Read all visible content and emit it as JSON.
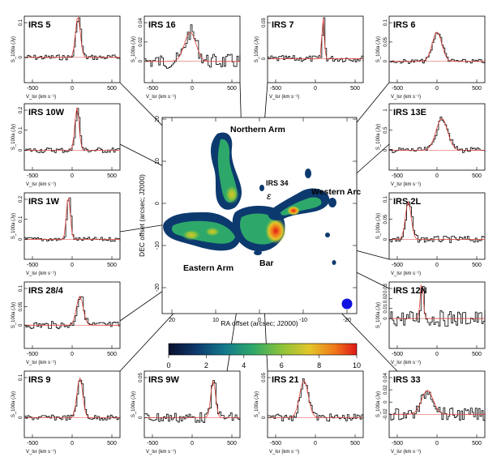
{
  "figure": {
    "map": {
      "xlabel": "RA offset (arcsec; J2000)",
      "ylabel": "DEC offset (arcsec; J2000)",
      "x_ticks": [
        "20",
        "10",
        "0",
        "-10",
        "-20"
      ],
      "y_ticks": [
        "20",
        "10",
        "0",
        "-10",
        "-20"
      ],
      "region_labels": {
        "northern_arm": "Northern Arm",
        "western_arc": "Western Arc",
        "eastern_arm": "Eastern Arm",
        "bar": "Bar",
        "irs34": "IRS 34",
        "epsilon": "ε"
      },
      "beam_color": "#1010e0"
    },
    "colorbar": {
      "ticks": [
        "0",
        "2",
        "4",
        "6",
        "8",
        "10"
      ],
      "colors": [
        "#0a0f2e",
        "#0c3a6e",
        "#137a8c",
        "#2ea86a",
        "#8cc33a",
        "#e3c62a",
        "#f07a1a",
        "#e01818"
      ]
    },
    "spectra": [
      {
        "label": "IRS 5",
        "ylabel": "S_100a (Jy)",
        "yticks": [
          "0",
          "0.1"
        ],
        "xticks": [
          "-500",
          "0",
          "500"
        ],
        "xlabel": "V_lsr (km s⁻¹)"
      },
      {
        "label": "IRS 16",
        "ylabel": "S_100a (Jy)",
        "yticks": [
          "0",
          "0.02",
          "0.04"
        ],
        "xticks": [
          "-500",
          "0",
          "500"
        ],
        "xlabel": "V_lsr (km s⁻¹)"
      },
      {
        "label": "IRS 7",
        "ylabel": "S_100a (Jy)",
        "yticks": [
          "0",
          "0.05"
        ],
        "xticks": [
          "-500",
          "0",
          "500"
        ],
        "xlabel": "V_lsr (km s⁻¹)"
      },
      {
        "label": "IRS 6",
        "ylabel": "S_100a (Jy)",
        "yticks": [
          "0",
          "0.05",
          "0.1"
        ],
        "xticks": [
          "-500",
          "0",
          "500"
        ],
        "xlabel": "V_lsr (km s⁻¹)"
      },
      {
        "label": "IRS 10W",
        "ylabel": "S_100a (Jy)",
        "yticks": [
          "0",
          "0.1",
          "0.2"
        ],
        "xticks": [
          "-500",
          "0",
          "500"
        ],
        "xlabel": "V_lsr (km s⁻¹)"
      },
      {
        "label": "IRS 13E",
        "ylabel": "S_100a (Jy)",
        "yticks": [
          "0",
          "0.5",
          "1"
        ],
        "xticks": [
          "-500",
          "0",
          "500"
        ],
        "xlabel": "V_lsr (km s⁻¹)"
      },
      {
        "label": "IRS 1W",
        "ylabel": "S_100a (Jy)",
        "yticks": [
          "0",
          "0.1",
          "0.2"
        ],
        "xticks": [
          "-500",
          "0",
          "500"
        ],
        "xlabel": "V_lsr (km s⁻¹)"
      },
      {
        "label": "IRS 2L",
        "ylabel": "S_100a (Jy)",
        "yticks": [
          "0",
          "0.05",
          "0.1"
        ],
        "xticks": [
          "-500",
          "0",
          "500"
        ],
        "xlabel": "V_lsr (km s⁻¹)"
      },
      {
        "label": "IRS 28/4",
        "ylabel": "S_100a (Jy)",
        "yticks": [
          "0",
          "0.05",
          "0.1"
        ],
        "xticks": [
          "-500",
          "0",
          "500"
        ],
        "xlabel": "V_lsr (km s⁻¹)"
      },
      {
        "label": "IRS 12N",
        "ylabel": "S_100a (Jy)",
        "yticks": [
          "0",
          "0.01",
          "0.02",
          "0.03"
        ],
        "xticks": [
          "-500",
          "0",
          "500"
        ],
        "xlabel": "V_lsr (km s⁻¹)"
      },
      {
        "label": "IRS 9",
        "ylabel": "S_100a (Jy)",
        "yticks": [
          "0",
          "0.1"
        ],
        "xticks": [
          "-500",
          "0",
          "500"
        ],
        "xlabel": "V_lsr (km s⁻¹)"
      },
      {
        "label": "IRS 9W",
        "ylabel": "S_100a (Jy)",
        "yticks": [
          "0",
          "0.05"
        ],
        "xticks": [
          "-500",
          "0",
          "500"
        ],
        "xlabel": "V_lsr (km s⁻¹)"
      },
      {
        "label": "IRS 21",
        "ylabel": "S_100a (Jy)",
        "yticks": [
          "0",
          "0.05"
        ],
        "xticks": [
          "-500",
          "0",
          "500"
        ],
        "xlabel": "V_lsr (km s⁻¹)"
      },
      {
        "label": "IRS 33",
        "ylabel": "S_100a (Jy)",
        "yticks": [
          "-0.02",
          "0",
          "0.02",
          "0.04"
        ],
        "xticks": [
          "-500",
          "0",
          "500"
        ],
        "xlabel": "V_lsr (km s⁻¹)"
      }
    ]
  }
}
